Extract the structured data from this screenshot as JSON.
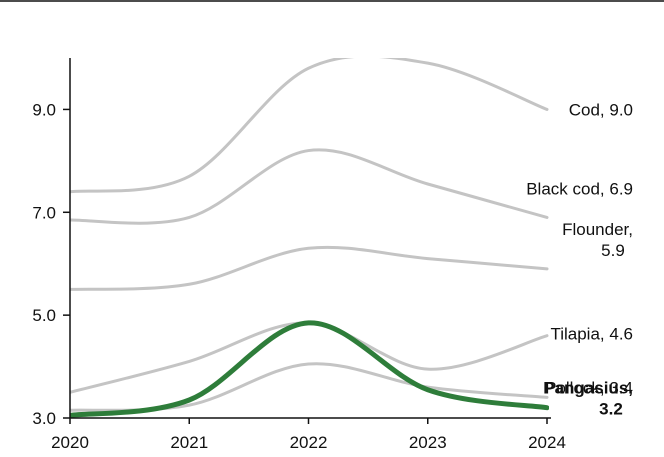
{
  "chart_data": {
    "type": "line",
    "x": [
      2020,
      2021,
      2022,
      2023,
      2024
    ],
    "xlim": [
      2020,
      2024
    ],
    "ylim": [
      3.0,
      10.0
    ],
    "y_ticks": [
      3.0,
      5.0,
      7.0,
      9.0
    ],
    "x_ticks": [
      2020,
      2021,
      2022,
      2023,
      2024
    ],
    "grid": false,
    "colors": {
      "default": "#c4c4c4",
      "highlight": "#2e7d3a"
    },
    "series": [
      {
        "name": "Cod",
        "end_label": [
          "Cod, 9.0"
        ],
        "values": [
          7.4,
          7.7,
          9.8,
          9.9,
          9.0
        ],
        "highlight": false
      },
      {
        "name": "Black cod",
        "end_label": [
          "Black cod, 6.9"
        ],
        "values": [
          6.85,
          6.9,
          8.2,
          7.55,
          6.9
        ],
        "highlight": false
      },
      {
        "name": "Flounder",
        "end_label": [
          "Flounder,",
          "5.9"
        ],
        "values": [
          5.5,
          5.6,
          6.3,
          6.1,
          5.9
        ],
        "highlight": false
      },
      {
        "name": "Tilapia",
        "end_label": [
          "Tilapia, 4.6"
        ],
        "values": [
          3.5,
          4.1,
          4.85,
          3.95,
          4.6
        ],
        "highlight": false
      },
      {
        "name": "Pollock",
        "end_label": [
          "Pollock, 3.4"
        ],
        "values": [
          3.15,
          3.25,
          4.05,
          3.6,
          3.4
        ],
        "highlight": false
      },
      {
        "name": "Pangasius",
        "end_label": [
          "Pangasius,",
          "3.2"
        ],
        "values": [
          3.05,
          3.35,
          4.85,
          3.55,
          3.2
        ],
        "highlight": true
      }
    ]
  }
}
